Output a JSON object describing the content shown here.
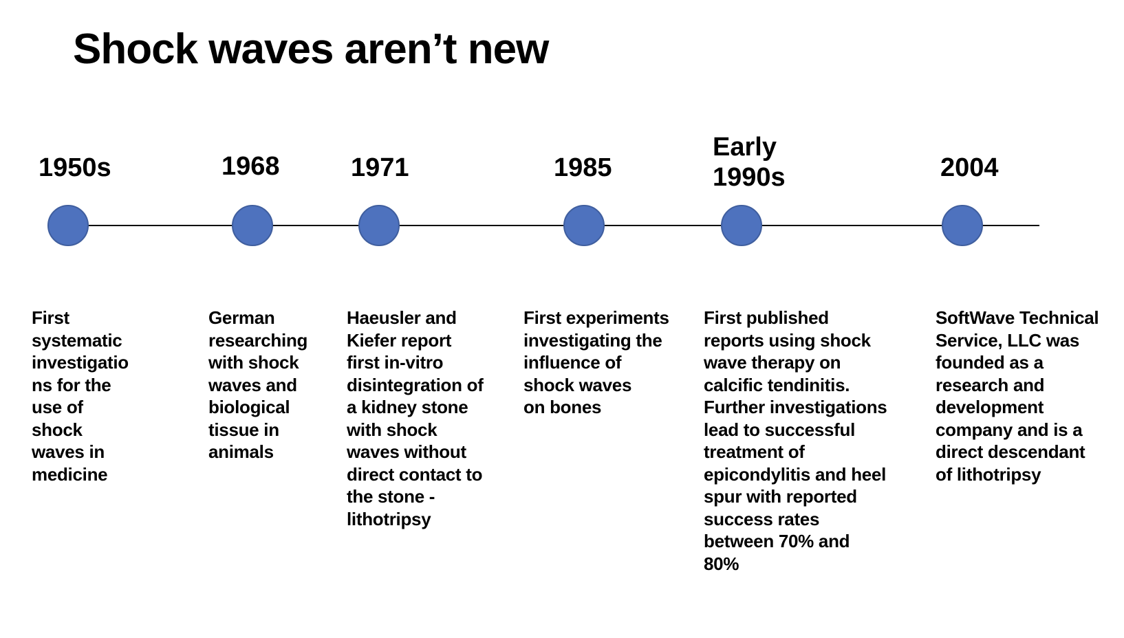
{
  "slide": {
    "title": "Shock waves aren’t new",
    "accent_color": "#4e72be",
    "events": [
      {
        "year": "1950s",
        "text": "First\nsystematic\ninvestigatio\nns for the\nuse of\nshock\nwaves in\nmedicine"
      },
      {
        "year": "1968",
        "text": "German\nresearching\nwith shock\nwaves and\nbiological\ntissue in\nanimals"
      },
      {
        "year": "1971",
        "text": "Haeusler and\nKiefer report\nfirst in-vitro\ndisintegration of\na kidney stone\nwith shock\nwaves without\ndirect contact to\nthe stone -\nlithotripsy"
      },
      {
        "year": "1985",
        "text": "First experiments\ninvestigating the\ninfluence of\nshock waves\non bones"
      },
      {
        "year": "Early\n1990s",
        "text": "First published\nreports using shock\nwave therapy on\ncalcific tendinitis.\nFurther investigations\nlead to successful\ntreatment of\nepicondylitis and heel\nspur with reported\nsuccess rates\nbetween 70% and\n80%"
      },
      {
        "year": "2004",
        "text": "SoftWave Technical\nService, LLC was\nfounded as a\nresearch and\ndevelopment\ncompany and is a\ndirect descendant\nof lithotripsy"
      }
    ]
  }
}
